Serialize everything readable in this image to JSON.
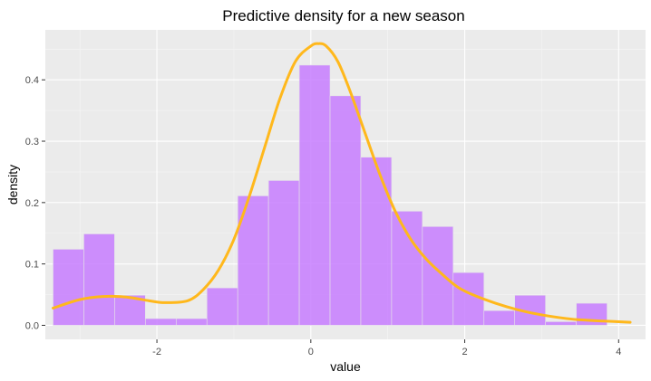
{
  "chart_data": {
    "type": "bar",
    "title": "Predictive density for a new season",
    "xlabel": "value",
    "ylabel": "density",
    "xlim": [
      -3.45,
      4.35
    ],
    "ylim": [
      -0.0229,
      0.4814
    ],
    "x_ticks": [
      -2,
      0,
      2,
      4
    ],
    "y_ticks": [
      0.0,
      0.1,
      0.2,
      0.3,
      0.4
    ],
    "y_tick_labels": [
      "0.0",
      "0.1",
      "0.2",
      "0.3",
      "0.4"
    ],
    "grid": true,
    "histogram": {
      "bin_width": 0.4,
      "bin_start": -3.35,
      "values": [
        0.124,
        0.149,
        0.049,
        0.011,
        0.011,
        0.061,
        0.211,
        0.236,
        0.424,
        0.374,
        0.274,
        0.186,
        0.161,
        0.086,
        0.024,
        0.049,
        0.006,
        0.036
      ],
      "fill": "#c77cff",
      "fill_opacity": 0.85,
      "outline": "#e6e6e6"
    },
    "density_curve": {
      "color": "#ffb81c",
      "x": [
        -3.35,
        -3.0,
        -2.7,
        -2.4,
        -2.1,
        -1.9,
        -1.6,
        -1.4,
        -1.2,
        -1.0,
        -0.8,
        -0.6,
        -0.4,
        -0.2,
        0.0,
        0.1,
        0.2,
        0.35,
        0.5,
        0.7,
        0.9,
        1.1,
        1.3,
        1.5,
        1.7,
        1.9,
        2.1,
        2.4,
        2.7,
        3.0,
        3.4,
        3.8,
        4.15
      ],
      "y": [
        0.028,
        0.042,
        0.047,
        0.046,
        0.04,
        0.037,
        0.04,
        0.058,
        0.09,
        0.14,
        0.21,
        0.29,
        0.37,
        0.43,
        0.455,
        0.459,
        0.455,
        0.43,
        0.385,
        0.315,
        0.245,
        0.185,
        0.14,
        0.108,
        0.084,
        0.063,
        0.05,
        0.036,
        0.025,
        0.017,
        0.01,
        0.007,
        0.005
      ]
    },
    "colors": {
      "panel": "#ebebeb",
      "grid_major": "#ffffff",
      "grid_minor": "#f5f5f5"
    }
  }
}
